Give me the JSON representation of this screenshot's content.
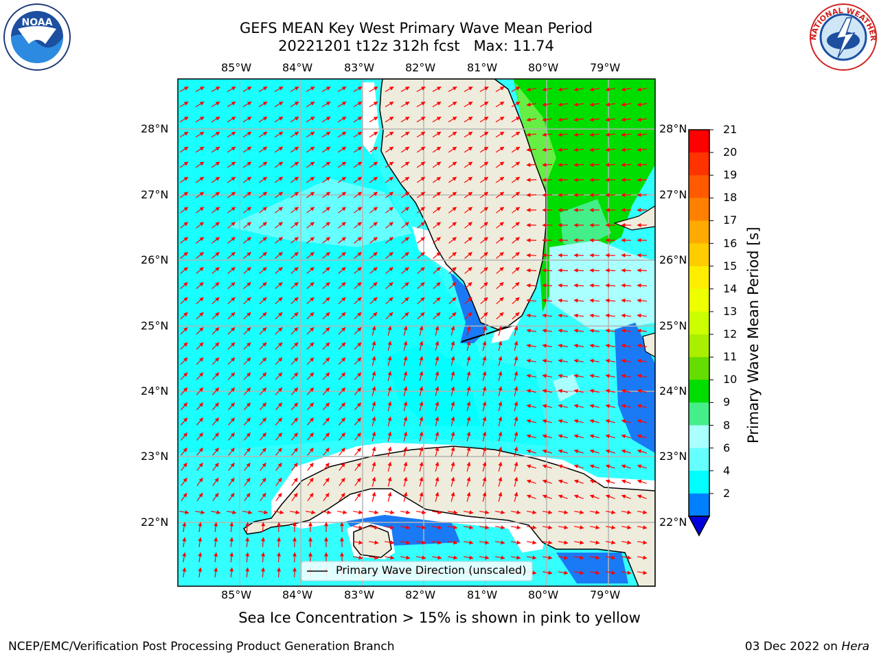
{
  "title": {
    "line1": "GEFS MEAN Key West Primary Wave Mean Period",
    "line2": "20221201 t12z 312h fcst   Max: 11.74"
  },
  "logos": {
    "left": "noaa-logo",
    "right": "nws-logo",
    "nws_text": "NATIONAL WEATHER SERVICE"
  },
  "map": {
    "lon_labels": [
      "85°W",
      "84°W",
      "83°W",
      "82°W",
      "81°W",
      "80°W",
      "79°W"
    ],
    "lat_labels": [
      "28°N",
      "27°N",
      "26°N",
      "25°N",
      "24°N",
      "23°N",
      "22°N"
    ],
    "legend_text": "Primary Wave Direction (unscaled)",
    "colors": {
      "land": "#eeecdc",
      "coast": "#000000",
      "grid": "#b4b4b4",
      "arrow": "#ff0000"
    }
  },
  "colorbar": {
    "title": "Primary Wave Mean Period [s]",
    "ticks": [
      "21",
      "20",
      "19",
      "18",
      "17",
      "16",
      "15",
      "14",
      "13",
      "12",
      "11",
      "10",
      "9",
      "8",
      "6",
      "4",
      "2"
    ],
    "colors": [
      "#ff0000",
      "#ff3300",
      "#ff5a00",
      "#ff8000",
      "#ffaa00",
      "#ffcc00",
      "#ffee00",
      "#eeff00",
      "#ccff00",
      "#aaee00",
      "#66dd00",
      "#00dd00",
      "#44ee88",
      "#aaffff",
      "#66ffff",
      "#00ffff",
      "#0080ff",
      "#0000dd"
    ]
  },
  "subtitle": "Sea Ice Concentration > 15% is shown in pink to yellow",
  "footer": {
    "left": "NCEP/EMC/Verification Post Processing Product Generation Branch",
    "right_prefix": "03 Dec 2022 on ",
    "right_host": "Hera"
  }
}
